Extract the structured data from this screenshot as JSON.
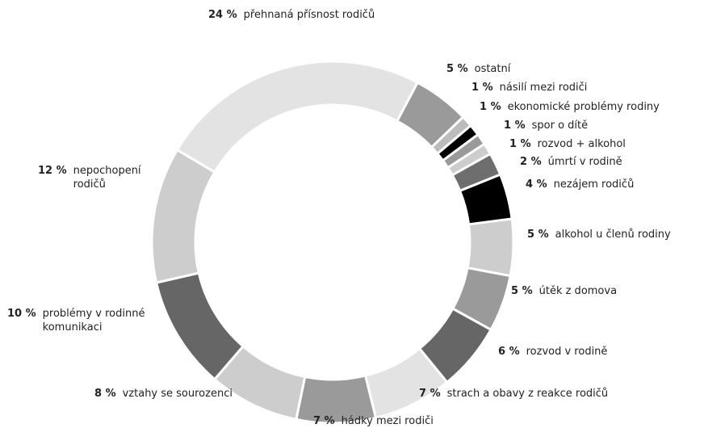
{
  "chart_data": {
    "type": "donut",
    "categories": [
      "ostatní",
      "násilí mezi rodiči",
      "ekonomické problémy rodiny",
      "spor o dítě",
      "rozvod + alkohol",
      "úmrtí v rodině",
      "nezájem rodičů",
      "alkohol u členů rodiny",
      "útěk z domova",
      "rozvod v rodině",
      "strach a obavy z reakce rodičů",
      "hádky mezi rodiči",
      "vztahy se sourozenci",
      "problémy v rodinné komunikaci",
      "nepochopení rodičů",
      "přehnaná přísnost rodičů"
    ],
    "values": [
      5,
      1,
      1,
      1,
      1,
      2,
      4,
      5,
      5,
      6,
      7,
      7,
      8,
      10,
      12,
      24
    ],
    "value_labels": [
      "5 %",
      "1 %",
      "1 %",
      "1 %",
      "1 %",
      "2 %",
      "4 %",
      "5 %",
      "5 %",
      "6 %",
      "7 %",
      "7 %",
      "8 %",
      "10 %",
      "12 %",
      "24 %"
    ],
    "colors": [
      "#9a9a9a",
      "#bcbcbc",
      "#000000",
      "#9a9a9a",
      "#cdcdcd",
      "#6e6e6e",
      "#000000",
      "#cdcdcd",
      "#9a9a9a",
      "#666666",
      "#e3e3e3",
      "#9a9a9a",
      "#cdcdcd",
      "#666666",
      "#cdcdcd",
      "#e3e3e3"
    ]
  }
}
